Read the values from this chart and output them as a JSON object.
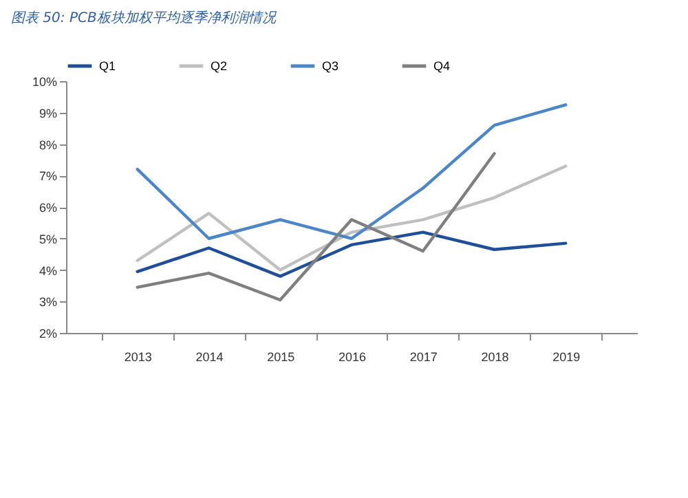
{
  "chart_data": {
    "type": "line",
    "title": "图表 50:  PCB板块加权平均逐季净利润情况",
    "categories": [
      "2013",
      "2014",
      "2015",
      "2016",
      "2017",
      "2018",
      "2019"
    ],
    "series": [
      {
        "name": "Q1",
        "color": "#1f4e9a",
        "values": [
          3.95,
          4.7,
          3.8,
          4.8,
          5.2,
          4.65,
          4.85
        ]
      },
      {
        "name": "Q2",
        "color": "#c0c0c0",
        "values": [
          4.3,
          5.8,
          4.0,
          5.2,
          5.6,
          6.3,
          7.3
        ]
      },
      {
        "name": "Q3",
        "color": "#4a86c8",
        "values": [
          7.2,
          5.0,
          5.6,
          5.0,
          6.6,
          8.6,
          9.25
        ]
      },
      {
        "name": "Q4",
        "color": "#7f7f7f",
        "values": [
          3.45,
          3.9,
          3.05,
          5.6,
          4.6,
          7.7,
          null
        ]
      }
    ],
    "ylim": [
      2,
      10
    ],
    "yticks": [
      {
        "value": 2,
        "label": "2%"
      },
      {
        "value": 3,
        "label": "3%"
      },
      {
        "value": 4,
        "label": "4%"
      },
      {
        "value": 5,
        "label": "5%"
      },
      {
        "value": 6,
        "label": "6%"
      },
      {
        "value": 7,
        "label": "7%"
      },
      {
        "value": 8,
        "label": "8%"
      },
      {
        "value": 9,
        "label": "9%"
      },
      {
        "value": 10,
        "label": "10%"
      }
    ],
    "legend": "top",
    "grid": false,
    "marker": "none",
    "line_style": "solid"
  }
}
